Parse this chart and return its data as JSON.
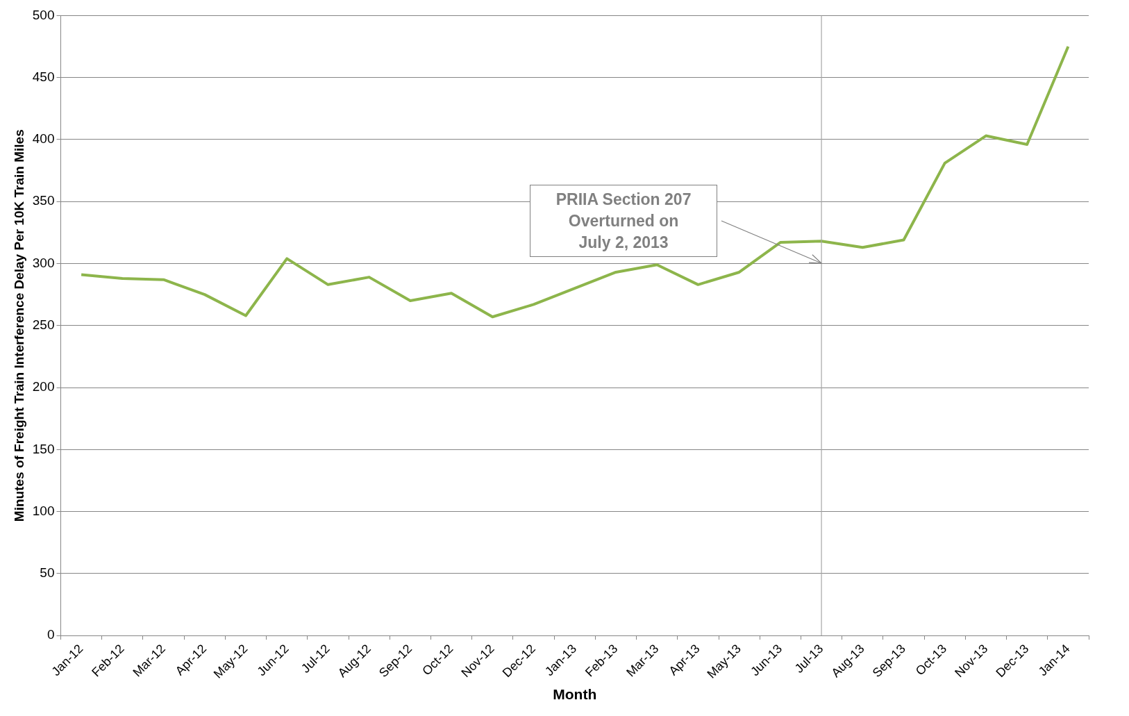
{
  "chart_data": {
    "type": "line",
    "xlabel": "Month",
    "ylabel": "Minutes of Freight Train Interference Delay Per 10K Train Miles",
    "categories": [
      "Jan-12",
      "Feb-12",
      "Mar-12",
      "Apr-12",
      "May-12",
      "Jun-12",
      "Jul-12",
      "Aug-12",
      "Sep-12",
      "Oct-12",
      "Nov-12",
      "Dec-12",
      "Jan-13",
      "Feb-13",
      "Mar-13",
      "Apr-13",
      "May-13",
      "Jun-13",
      "Jul-13",
      "Aug-13",
      "Sep-13",
      "Oct-13",
      "Nov-13",
      "Dec-13",
      "Jan-14"
    ],
    "series": [
      {
        "color": "#8db54b",
        "values": [
          291,
          288,
          287,
          275,
          258,
          304,
          283,
          289,
          270,
          276,
          257,
          267,
          280,
          293,
          299,
          283,
          293,
          317,
          318,
          313,
          319,
          381,
          403,
          396,
          475
        ]
      }
    ],
    "ylim": [
      0,
      500
    ],
    "yticks": [
      0,
      50,
      100,
      150,
      200,
      250,
      300,
      350,
      400,
      450,
      500
    ],
    "grid": "y",
    "marker": "none",
    "line_style": "solid",
    "legend": false,
    "ref_lines": [
      {
        "axis": "x",
        "value": "Jul-13",
        "color": "#a6a6a6"
      }
    ],
    "annotations": [
      "PRIIA Section 207\nOverturned on\nJuly 2, 2013"
    ]
  }
}
